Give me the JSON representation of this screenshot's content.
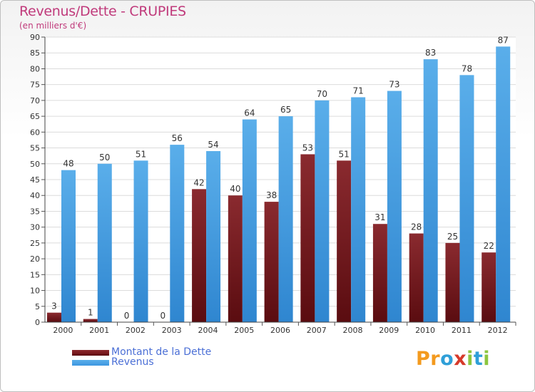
{
  "chart_data": {
    "type": "bar",
    "title": "Revenus/Dette - CRUPIES",
    "subtitle": "(en milliers d'€)",
    "categories": [
      "2000",
      "2001",
      "2002",
      "2003",
      "2004",
      "2005",
      "2006",
      "2007",
      "2008",
      "2009",
      "2010",
      "2011",
      "2012"
    ],
    "series": [
      {
        "name": "Montant de la Dette",
        "color": "#7b1a1f",
        "values": [
          3,
          1,
          0,
          0,
          42,
          40,
          38,
          53,
          51,
          31,
          28,
          25,
          22
        ]
      },
      {
        "name": "Revenus",
        "color": "#3d97e0",
        "values": [
          48,
          50,
          51,
          56,
          54,
          64,
          65,
          70,
          71,
          73,
          83,
          78,
          87
        ]
      }
    ],
    "ylim": [
      0,
      90
    ],
    "yticks": [
      0,
      5,
      10,
      15,
      20,
      25,
      30,
      35,
      40,
      45,
      50,
      55,
      60,
      65,
      70,
      75,
      80,
      85,
      90
    ],
    "grid": true,
    "legend_position": "bottom-left"
  },
  "logo": {
    "text": "Proxiti",
    "letters": [
      "P",
      "r",
      "o",
      "x",
      "i",
      "t",
      "i"
    ],
    "colors": [
      "#f39a1e",
      "#f39a1e",
      "#2f9fd8",
      "#d63a2a",
      "#8cc63f",
      "#2f9fd8",
      "#8cc63f"
    ]
  }
}
